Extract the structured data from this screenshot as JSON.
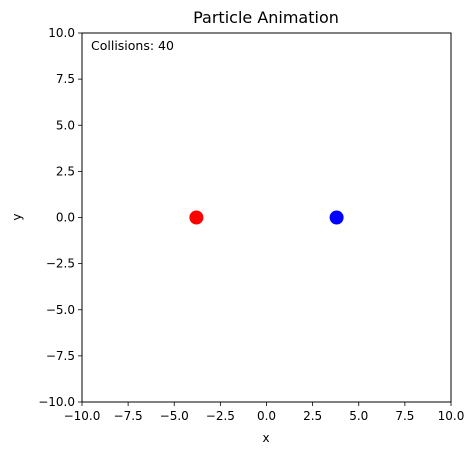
{
  "chart_data": {
    "type": "scatter",
    "title": "Particle Animation",
    "xlabel": "x",
    "ylabel": "y",
    "xlim": [
      -10,
      10
    ],
    "ylim": [
      -10,
      10
    ],
    "xticks": [
      -10,
      -7.5,
      -5,
      -2.5,
      0,
      2.5,
      5,
      7.5,
      10
    ],
    "yticks": [
      -10,
      -7.5,
      -5,
      -2.5,
      0,
      2.5,
      5,
      7.5,
      10
    ],
    "xtick_labels": [
      "−10.0",
      "−7.5",
      "−5.0",
      "−2.5",
      "0.0",
      "2.5",
      "5.0",
      "7.5",
      "10.0"
    ],
    "ytick_labels": [
      "−10.0",
      "−7.5",
      "−5.0",
      "−2.5",
      "0.0",
      "2.5",
      "5.0",
      "7.5",
      "10.0"
    ],
    "grid": false,
    "annotation": "Collisions: 40",
    "points": [
      {
        "x": -3.8,
        "y": 0.0,
        "color": "#ff0000"
      },
      {
        "x": 3.8,
        "y": 0.0,
        "color": "#0000ff"
      }
    ]
  }
}
